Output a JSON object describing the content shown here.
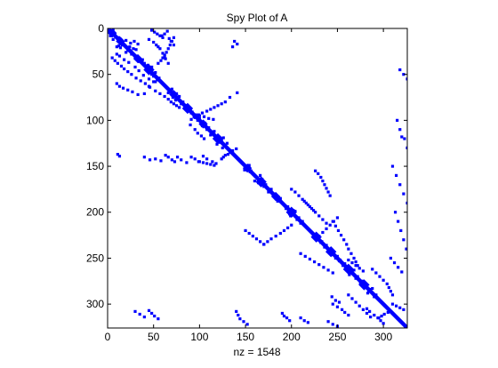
{
  "chart_data": {
    "type": "scatter",
    "title": "Spy Plot of A",
    "xlabel": "nz = 1548",
    "ylabel": "",
    "matrix_size": 326,
    "xlim": [
      0,
      326
    ],
    "ylim": [
      326,
      0
    ],
    "x_ticks": [
      0,
      50,
      100,
      150,
      200,
      250,
      300
    ],
    "y_ticks": [
      0,
      50,
      100,
      150,
      200,
      250,
      300
    ],
    "grid": false,
    "marker_color": "#0000ff",
    "diagonal_band": {
      "from": 0,
      "to": 326,
      "half_width": 3
    },
    "blocks": [
      {
        "center": 5,
        "size": 10
      },
      {
        "center": 14,
        "size": 10
      },
      {
        "center": 33,
        "size": 10
      },
      {
        "center": 45,
        "size": 12
      },
      {
        "center": 72,
        "size": 10
      },
      {
        "center": 87,
        "size": 12
      },
      {
        "center": 104,
        "size": 10
      },
      {
        "center": 120,
        "size": 12
      },
      {
        "center": 152,
        "size": 10
      },
      {
        "center": 167,
        "size": 12
      },
      {
        "center": 183,
        "size": 10
      },
      {
        "center": 200,
        "size": 12
      },
      {
        "center": 227,
        "size": 12
      },
      {
        "center": 243,
        "size": 12
      },
      {
        "center": 262,
        "size": 12
      },
      {
        "center": 279,
        "size": 12
      }
    ],
    "points": [
      [
        1,
        2
      ],
      [
        4,
        1
      ],
      [
        8,
        3
      ],
      [
        2,
        6
      ],
      [
        6,
        8
      ],
      [
        10,
        12
      ],
      [
        12,
        6
      ],
      [
        15,
        14
      ],
      [
        18,
        16
      ],
      [
        13,
        20
      ],
      [
        20,
        10
      ],
      [
        20,
        24
      ],
      [
        24,
        22
      ],
      [
        26,
        20
      ],
      [
        22,
        28
      ],
      [
        28,
        26
      ],
      [
        30,
        32
      ],
      [
        32,
        30
      ],
      [
        36,
        34
      ],
      [
        34,
        38
      ],
      [
        38,
        40
      ],
      [
        40,
        44
      ],
      [
        44,
        42
      ],
      [
        47,
        46
      ],
      [
        50,
        48
      ],
      [
        48,
        52
      ],
      [
        52,
        50
      ],
      [
        54,
        56
      ],
      [
        56,
        54
      ],
      [
        42,
        48
      ],
      [
        21,
        14
      ],
      [
        19,
        12
      ],
      [
        16,
        25
      ],
      [
        23,
        31
      ],
      [
        14,
        29
      ],
      [
        17,
        33
      ],
      [
        28,
        10
      ],
      [
        30,
        13
      ],
      [
        34,
        18
      ],
      [
        37,
        23
      ],
      [
        42,
        30
      ],
      [
        46,
        34
      ],
      [
        51,
        39
      ],
      [
        55,
        45
      ],
      [
        58,
        52
      ],
      [
        60,
        10
      ],
      [
        63,
        13
      ],
      [
        65,
        17
      ],
      [
        67,
        22
      ],
      [
        69,
        27
      ],
      [
        72,
        33
      ],
      [
        71,
        40
      ],
      [
        63,
        45
      ],
      [
        58,
        50
      ],
      [
        38,
        55
      ],
      [
        35,
        58
      ],
      [
        32,
        60
      ],
      [
        29,
        62
      ],
      [
        26,
        64
      ],
      [
        22,
        66
      ],
      [
        18,
        68
      ],
      [
        14,
        70
      ],
      [
        10,
        72
      ],
      [
        32,
        5
      ],
      [
        35,
        8
      ],
      [
        38,
        11
      ],
      [
        41,
        15
      ],
      [
        44,
        18
      ],
      [
        47,
        22
      ],
      [
        50,
        26
      ],
      [
        54,
        31
      ],
      [
        57,
        36
      ],
      [
        60,
        41
      ],
      [
        64,
        46
      ],
      [
        68,
        52
      ],
      [
        71,
        57
      ],
      [
        74,
        62
      ],
      [
        77,
        66
      ],
      [
        80,
        69
      ],
      [
        82,
        72
      ],
      [
        84,
        75
      ],
      [
        86,
        78
      ],
      [
        12,
        45
      ],
      [
        15,
        50
      ],
      [
        18,
        53
      ],
      [
        20,
        55
      ],
      [
        22,
        57
      ],
      [
        27,
        60
      ],
      [
        30,
        62
      ],
      [
        33,
        63
      ],
      [
        38,
        66
      ],
      [
        8,
        59
      ],
      [
        6,
        62
      ],
      [
        3,
        65
      ],
      [
        11,
        67
      ],
      [
        14,
        69
      ],
      [
        18,
        72
      ],
      [
        2,
        48
      ],
      [
        4,
        51
      ],
      [
        6,
        54
      ],
      [
        8,
        57
      ],
      [
        10,
        60
      ],
      [
        70,
        66
      ],
      [
        66,
        70
      ],
      [
        75,
        71
      ],
      [
        71,
        75
      ],
      [
        78,
        74
      ],
      [
        74,
        78
      ],
      [
        80,
        82
      ],
      [
        82,
        80
      ],
      [
        84,
        86
      ],
      [
        86,
        84
      ],
      [
        88,
        90
      ],
      [
        90,
        88
      ],
      [
        92,
        91
      ],
      [
        91,
        92
      ],
      [
        94,
        96
      ],
      [
        96,
        94
      ],
      [
        100,
        98
      ],
      [
        98,
        100
      ],
      [
        102,
        104
      ],
      [
        104,
        102
      ],
      [
        106,
        103
      ],
      [
        103,
        106
      ],
      [
        108,
        110
      ],
      [
        110,
        108
      ],
      [
        112,
        116
      ],
      [
        116,
        112
      ],
      [
        118,
        120
      ],
      [
        120,
        118
      ],
      [
        122,
        124
      ],
      [
        124,
        122
      ],
      [
        126,
        119
      ],
      [
        119,
        126
      ],
      [
        127,
        128
      ],
      [
        128,
        127
      ],
      [
        130,
        125
      ],
      [
        125,
        130
      ],
      [
        95,
        100
      ],
      [
        96,
        105
      ],
      [
        98,
        110
      ],
      [
        99,
        115
      ],
      [
        105,
        90
      ],
      [
        110,
        95
      ],
      [
        114,
        98
      ],
      [
        117,
        102
      ],
      [
        120,
        105
      ],
      [
        80,
        128
      ],
      [
        82,
        124
      ],
      [
        84,
        120
      ],
      [
        86,
        116
      ],
      [
        88,
        112
      ],
      [
        90,
        108
      ],
      [
        92,
        103
      ],
      [
        94,
        99
      ],
      [
        97,
        95
      ],
      [
        99,
        91
      ],
      [
        131,
        140
      ],
      [
        133,
        136
      ],
      [
        135,
        133
      ],
      [
        137,
        131
      ],
      [
        138,
        128
      ],
      [
        140,
        126
      ],
      [
        142,
        124
      ],
      [
        145,
        100
      ],
      [
        146,
        104
      ],
      [
        147,
        108
      ],
      [
        148,
        112
      ],
      [
        149,
        116
      ],
      [
        137,
        11
      ],
      [
        139,
        13
      ],
      [
        140,
        40
      ],
      [
        143,
        46
      ],
      [
        142,
        52
      ],
      [
        144,
        58
      ],
      [
        138,
        63
      ],
      [
        140,
        66
      ],
      [
        143,
        70
      ],
      [
        145,
        73
      ],
      [
        140,
        76
      ],
      [
        143,
        80
      ],
      [
        146,
        86
      ],
      [
        140,
        91
      ],
      [
        142,
        95
      ],
      [
        145,
        99
      ],
      [
        139,
        104
      ],
      [
        142,
        108
      ],
      [
        145,
        114
      ],
      [
        147,
        118
      ],
      [
        14,
        138
      ],
      [
        17,
        141
      ],
      [
        20,
        136
      ],
      [
        70,
        141
      ],
      [
        75,
        133
      ],
      [
        150,
        152
      ],
      [
        152,
        150
      ],
      [
        154,
        149
      ],
      [
        149,
        154
      ],
      [
        156,
        155
      ],
      [
        155,
        156
      ],
      [
        160,
        166
      ],
      [
        166,
        160
      ],
      [
        164,
        168
      ],
      [
        168,
        164
      ],
      [
        170,
        172
      ],
      [
        172,
        170
      ],
      [
        175,
        178
      ],
      [
        178,
        175
      ],
      [
        180,
        182
      ],
      [
        182,
        180
      ],
      [
        184,
        186
      ],
      [
        186,
        184
      ],
      [
        188,
        185
      ],
      [
        185,
        188
      ],
      [
        194,
        196
      ],
      [
        196,
        194
      ],
      [
        198,
        202
      ],
      [
        202,
        198
      ],
      [
        204,
        199
      ],
      [
        199,
        204
      ],
      [
        206,
        208
      ],
      [
        208,
        206
      ],
      [
        210,
        212
      ],
      [
        212,
        210
      ],
      [
        188,
        214
      ],
      [
        192,
        218
      ],
      [
        196,
        222
      ],
      [
        200,
        226
      ],
      [
        204,
        230
      ],
      [
        208,
        234
      ],
      [
        212,
        238
      ],
      [
        214,
        200
      ],
      [
        217,
        196
      ],
      [
        220,
        192
      ],
      [
        223,
        188
      ],
      [
        226,
        183
      ],
      [
        229,
        178
      ],
      [
        232,
        174
      ],
      [
        235,
        170
      ],
      [
        175,
        200
      ],
      [
        178,
        204
      ],
      [
        182,
        208
      ],
      [
        186,
        212
      ],
      [
        190,
        216
      ],
      [
        194,
        220
      ],
      [
        198,
        224
      ],
      [
        155,
        226
      ],
      [
        158,
        229
      ],
      [
        162,
        232
      ],
      [
        166,
        234
      ],
      [
        170,
        236
      ],
      [
        174,
        238
      ],
      [
        178,
        240
      ],
      [
        182,
        242
      ],
      [
        220,
        150
      ],
      [
        223,
        154
      ],
      [
        226,
        158
      ],
      [
        229,
        162
      ],
      [
        232,
        166
      ],
      [
        235,
        170
      ],
      [
        225,
        224
      ],
      [
        224,
        225
      ],
      [
        228,
        230
      ],
      [
        230,
        228
      ],
      [
        232,
        233
      ],
      [
        233,
        232
      ],
      [
        236,
        238
      ],
      [
        238,
        236
      ],
      [
        240,
        243
      ],
      [
        243,
        240
      ],
      [
        246,
        244
      ],
      [
        244,
        246
      ],
      [
        248,
        250
      ],
      [
        250,
        248
      ],
      [
        252,
        253
      ],
      [
        253,
        252
      ],
      [
        256,
        258
      ],
      [
        258,
        256
      ],
      [
        260,
        262
      ],
      [
        262,
        260
      ],
      [
        264,
        266
      ],
      [
        266,
        264
      ],
      [
        268,
        263
      ],
      [
        263,
        268
      ],
      [
        270,
        272
      ],
      [
        272,
        270
      ],
      [
        275,
        278
      ],
      [
        278,
        275
      ],
      [
        280,
        282
      ],
      [
        282,
        280
      ],
      [
        284,
        286
      ],
      [
        286,
        284
      ],
      [
        288,
        283
      ],
      [
        283,
        288
      ],
      [
        290,
        292
      ],
      [
        292,
        290
      ],
      [
        210,
        245
      ],
      [
        215,
        248
      ],
      [
        220,
        251
      ],
      [
        225,
        254
      ],
      [
        230,
        257
      ],
      [
        235,
        260
      ],
      [
        240,
        262
      ],
      [
        245,
        265
      ],
      [
        250,
        268
      ],
      [
        254,
        270
      ],
      [
        258,
        272
      ],
      [
        245,
        210
      ],
      [
        248,
        215
      ],
      [
        251,
        220
      ],
      [
        254,
        225
      ],
      [
        257,
        230
      ],
      [
        260,
        235
      ],
      [
        263,
        240
      ],
      [
        266,
        245
      ],
      [
        252,
        262
      ],
      [
        255,
        266
      ],
      [
        258,
        270
      ],
      [
        261,
        274
      ],
      [
        264,
        278
      ],
      [
        262,
        288
      ],
      [
        266,
        292
      ],
      [
        270,
        296
      ],
      [
        274,
        300
      ],
      [
        278,
        304
      ],
      [
        282,
        306
      ],
      [
        286,
        308
      ],
      [
        290,
        310
      ],
      [
        290,
        262
      ],
      [
        294,
        266
      ],
      [
        298,
        270
      ],
      [
        302,
        274
      ],
      [
        306,
        278
      ],
      [
        310,
        282
      ],
      [
        314,
        286
      ],
      [
        300,
        245
      ],
      [
        303,
        250
      ],
      [
        306,
        255
      ],
      [
        309,
        258
      ],
      [
        312,
        262
      ],
      [
        305,
        282
      ],
      [
        308,
        285
      ],
      [
        312,
        290
      ],
      [
        315,
        294
      ],
      [
        318,
        297
      ],
      [
        321,
        300
      ],
      [
        226,
        230
      ],
      [
        222,
        234
      ],
      [
        218,
        238
      ],
      [
        214,
        242
      ],
      [
        210,
        246
      ],
      [
        206,
        250
      ],
      [
        292,
        244
      ],
      [
        296,
        248
      ],
      [
        298,
        252
      ],
      [
        315,
        295
      ],
      [
        313,
        298
      ],
      [
        311,
        301
      ],
      [
        309,
        305
      ],
      [
        25,
        331
      ],
      [
        28,
        335
      ],
      [
        33,
        333
      ],
      [
        35,
        338
      ],
      [
        38,
        340
      ],
      [
        45,
        318
      ],
      [
        50,
        322
      ],
      [
        55,
        326
      ],
      [
        60,
        330
      ],
      [
        65,
        334
      ],
      [
        100,
        315
      ],
      [
        110,
        318
      ],
      [
        118,
        320
      ],
      [
        120,
        323
      ],
      [
        130,
        326
      ],
      [
        150,
        310
      ],
      [
        160,
        314
      ],
      [
        170,
        318
      ],
      [
        180,
        322
      ],
      [
        190,
        326
      ],
      [
        200,
        313
      ],
      [
        210,
        316
      ],
      [
        220,
        319
      ],
      [
        230,
        322
      ],
      [
        240,
        325
      ],
      [
        250,
        308
      ],
      [
        255,
        312
      ],
      [
        260,
        316
      ],
      [
        265,
        320
      ],
      [
        308,
        30
      ],
      [
        311,
        35
      ],
      [
        314,
        40
      ],
      [
        307,
        45
      ],
      [
        310,
        48
      ],
      [
        313,
        51
      ],
      [
        316,
        55
      ],
      [
        308,
        140
      ],
      [
        312,
        142
      ],
      [
        316,
        144
      ],
      [
        319,
        148
      ],
      [
        322,
        152
      ],
      [
        310,
        190
      ],
      [
        313,
        192
      ],
      [
        315,
        195
      ],
      [
        318,
        198
      ],
      [
        315,
        210
      ],
      [
        318,
        214
      ],
      [
        320,
        218
      ],
      [
        319,
        240
      ],
      [
        322,
        245
      ],
      [
        324,
        250
      ],
      [
        300,
        310
      ],
      [
        302,
        314
      ],
      [
        304,
        318
      ],
      [
        306,
        322
      ]
    ]
  }
}
